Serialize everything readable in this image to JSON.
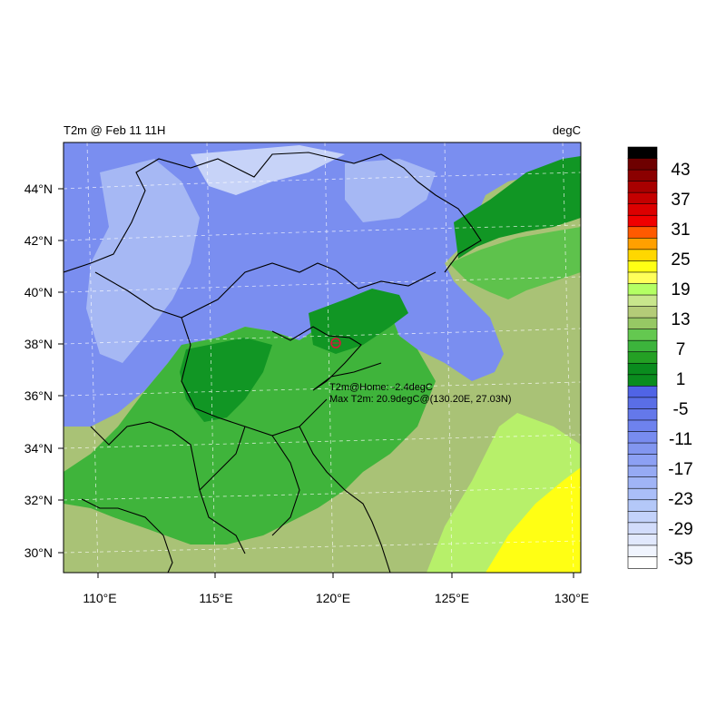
{
  "map": {
    "title_left": "T2m @ Feb 11 11H",
    "title_right": "degC",
    "lat_labels": [
      "44°N",
      "42°N",
      "40°N",
      "38°N",
      "36°N",
      "34°N",
      "32°N",
      "30°N"
    ],
    "lon_labels": [
      "110°E",
      "115°E",
      "120°E",
      "125°E",
      "130°E"
    ],
    "lat_values": [
      44,
      42,
      40,
      38,
      36,
      34,
      32,
      30
    ],
    "lon_values": [
      110,
      115,
      120,
      125,
      130
    ],
    "extent": {
      "lon_min": 108.5,
      "lon_max": 130.3,
      "lat_min": 29.3,
      "lat_max": 45.9
    },
    "annotation_home": "T2m@Home: -2.4degC",
    "annotation_max": "Max T2m: 20.9degC@(130.20E, 27.03N)",
    "home_marker": {
      "lon": 120.2,
      "lat": 38.05
    }
  },
  "colorbar": {
    "labels": [
      "43",
      "37",
      "31",
      "25",
      "19",
      "13",
      "7",
      "1",
      "-5",
      "-11",
      "-17",
      "-23",
      "-29",
      "-35"
    ],
    "colors_top_to_bottom": [
      "#000000",
      "#6e0000",
      "#8b0000",
      "#a80000",
      "#c40000",
      "#dc0000",
      "#f00000",
      "#ff5a00",
      "#ffa000",
      "#ffd700",
      "#ffff14",
      "#ffff5a",
      "#b4ff64",
      "#c8e68c",
      "#b4cc78",
      "#96c864",
      "#64c850",
      "#3cb43c",
      "#24a024",
      "#0a8c1e",
      "#0a8c1e",
      "#5064e6",
      "#5a6ee6",
      "#6478ea",
      "#6e82ee",
      "#788cf0",
      "#8296f0",
      "#8ca0f4",
      "#96aaf4",
      "#a0b4f6",
      "#aabef8",
      "#b4c8f8",
      "#c3d2fa",
      "#d2dcfb",
      "#e1e8fd",
      "#f0f4fe",
      "#ffffff"
    ]
  },
  "colors": {
    "cold_deep": "#6272e6",
    "cold": "#7a8ef0",
    "cold_light": "#a6b8f4",
    "cold_pale": "#c7d3f8",
    "green_dark": "#119624",
    "green": "#3fb43b",
    "green_mid": "#5ec24c",
    "olive": "#a9c276",
    "lime": "#b7f06a",
    "yellow": "#ffff14",
    "border": "#000000"
  }
}
